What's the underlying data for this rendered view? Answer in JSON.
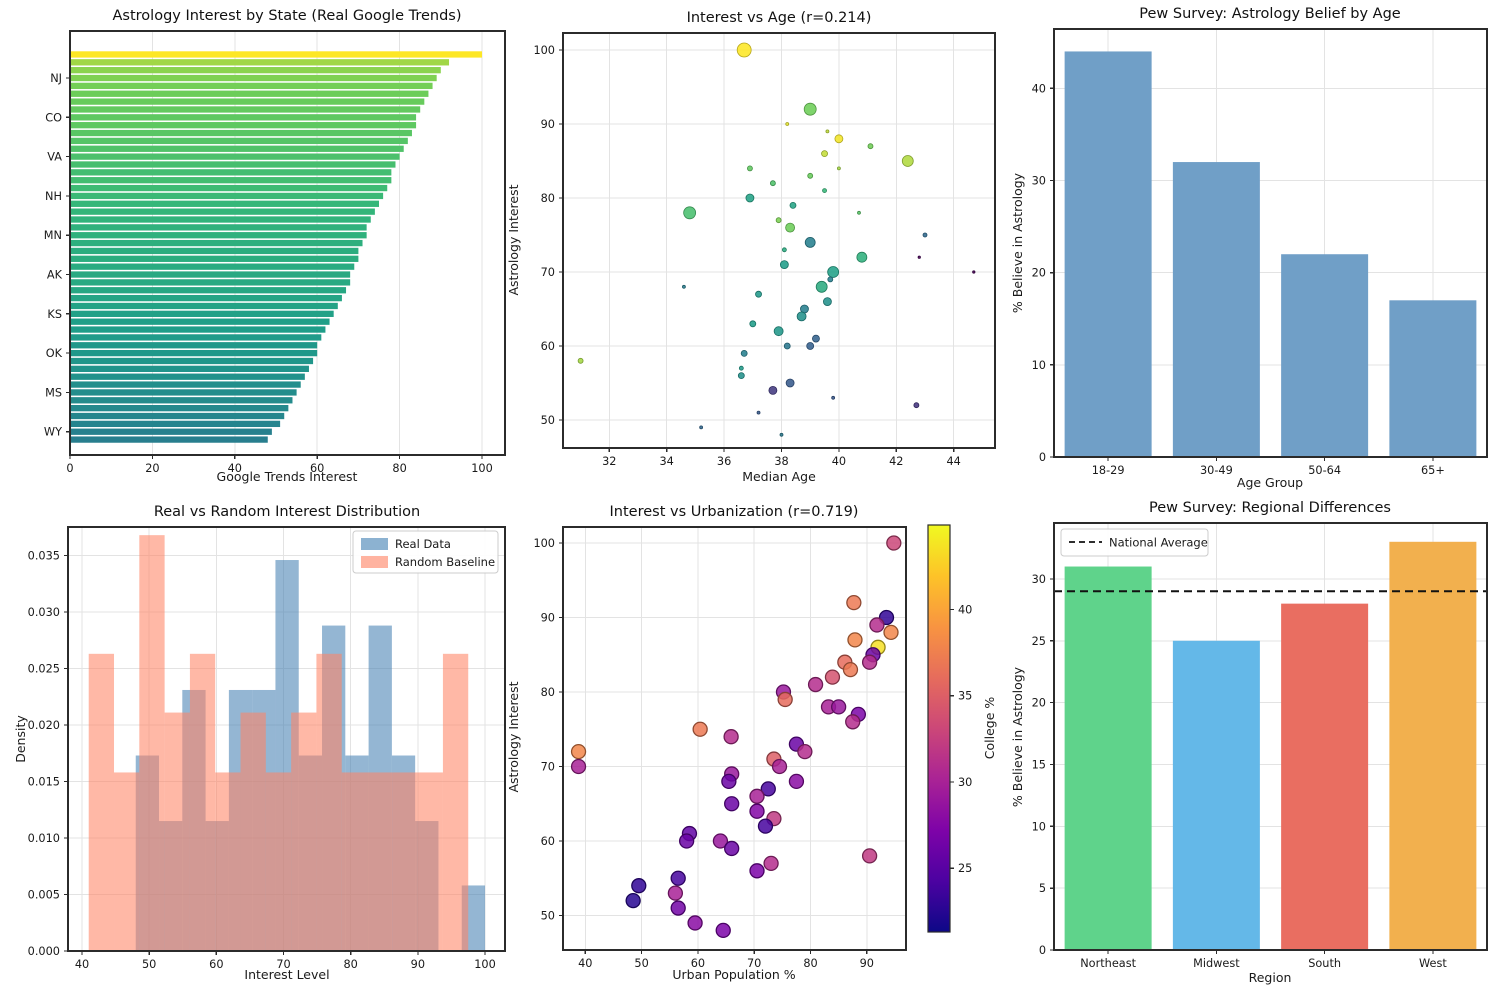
{
  "chart_data": {
    "states": [
      {
        "interest": 100,
        "age": 36.7,
        "urban": 94.8,
        "college": 33,
        "size": 7,
        "label": ""
      },
      {
        "interest": 92,
        "age": 39.0,
        "urban": 87.7,
        "college": 37,
        "size": 6,
        "label": ""
      },
      {
        "interest": 90,
        "age": 38.2,
        "urban": 93.5,
        "college": 23,
        "size": 1.5,
        "label": ""
      },
      {
        "interest": 89,
        "age": 39.6,
        "urban": 91.8,
        "college": 31,
        "size": 1.5,
        "label": "NJ"
      },
      {
        "interest": 88,
        "age": 40.0,
        "urban": 94.3,
        "college": 38,
        "size": 4,
        "label": ""
      },
      {
        "interest": 87,
        "age": 41.1,
        "urban": 87.9,
        "college": 38,
        "size": 2.5,
        "label": ""
      },
      {
        "interest": 86,
        "age": 39.5,
        "urban": 92.0,
        "college": 43.5,
        "size": 3,
        "label": ""
      },
      {
        "interest": 85,
        "age": 42.4,
        "urban": 91.1,
        "college": 26,
        "size": 5.5,
        "label": ""
      },
      {
        "interest": 84,
        "age": 36.9,
        "urban": 86.1,
        "college": 36,
        "size": 2.5,
        "label": "CO"
      },
      {
        "interest": 84,
        "age": 40.0,
        "urban": 90.5,
        "college": 31,
        "size": 1.5,
        "label": ""
      },
      {
        "interest": 83,
        "age": 39.0,
        "urban": 87.1,
        "college": 37,
        "size": 2.5,
        "label": ""
      },
      {
        "interest": 82,
        "age": 37.7,
        "urban": 83.9,
        "college": 34,
        "size": 2.5,
        "label": ""
      },
      {
        "interest": 81,
        "age": 39.5,
        "urban": 80.9,
        "college": 31,
        "size": 2,
        "label": ""
      },
      {
        "interest": 80,
        "age": 36.9,
        "urban": 75.2,
        "college": 29,
        "size": 4,
        "label": "VA"
      },
      {
        "interest": 79,
        "age": 38.4,
        "urban": 75.5,
        "college": 36,
        "size": 3,
        "label": ""
      },
      {
        "interest": 78,
        "age": 34.8,
        "urban": 83.2,
        "college": 30,
        "size": 6,
        "label": ""
      },
      {
        "interest": 78,
        "age": 40.7,
        "urban": 85.0,
        "college": 29,
        "size": 1.5,
        "label": ""
      },
      {
        "interest": 77,
        "age": 37.9,
        "urban": 88.5,
        "college": 27,
        "size": 2.5,
        "label": ""
      },
      {
        "interest": 76,
        "age": 38.3,
        "urban": 87.5,
        "college": 31,
        "size": 4.5,
        "label": "NH"
      },
      {
        "interest": 75,
        "age": 43.0,
        "urban": 60.4,
        "college": 37,
        "size": 2,
        "label": ""
      },
      {
        "interest": 74,
        "age": 39.0,
        "urban": 65.9,
        "college": 31,
        "size": 5,
        "label": ""
      },
      {
        "interest": 73,
        "age": 38.1,
        "urban": 77.5,
        "college": 26,
        "size": 2,
        "label": ""
      },
      {
        "interest": 72,
        "age": 42.8,
        "urban": 38.8,
        "college": 38,
        "size": 1.2,
        "label": ""
      },
      {
        "interest": 72,
        "age": 40.8,
        "urban": 79.0,
        "college": 31,
        "size": 5,
        "label": "MN"
      },
      {
        "interest": 71,
        "age": 38.1,
        "urban": 73.5,
        "college": 35,
        "size": 4,
        "label": ""
      },
      {
        "interest": 70,
        "age": 44.7,
        "urban": 38.8,
        "college": 30,
        "size": 1.2,
        "label": ""
      },
      {
        "interest": 70,
        "age": 39.8,
        "urban": 74.5,
        "college": 30,
        "size": 5.5,
        "label": ""
      },
      {
        "interest": 69,
        "age": 39.7,
        "urban": 66.0,
        "college": 29,
        "size": 2.5,
        "label": ""
      },
      {
        "interest": 68,
        "age": 39.4,
        "urban": 77.5,
        "college": 28,
        "size": 5.5,
        "label": "AK"
      },
      {
        "interest": 68,
        "age": 34.6,
        "urban": 65.5,
        "college": 26,
        "size": 1.5,
        "label": ""
      },
      {
        "interest": 67,
        "age": 37.2,
        "urban": 72.5,
        "college": 24,
        "size": 3,
        "label": ""
      },
      {
        "interest": 66,
        "age": 39.6,
        "urban": 70.5,
        "college": 30,
        "size": 4,
        "label": ""
      },
      {
        "interest": 65,
        "age": 38.8,
        "urban": 66.0,
        "college": 26,
        "size": 4,
        "label": ""
      },
      {
        "interest": 64,
        "age": 38.7,
        "urban": 70.5,
        "college": 27.5,
        "size": 4.5,
        "label": "KS"
      },
      {
        "interest": 63,
        "age": 37.0,
        "urban": 73.5,
        "college": 32,
        "size": 3,
        "label": ""
      },
      {
        "interest": 62,
        "age": 37.9,
        "urban": 72.0,
        "college": 24,
        "size": 4.5,
        "label": ""
      },
      {
        "interest": 61,
        "age": 39.2,
        "urban": 58.5,
        "college": 25.5,
        "size": 3.5,
        "label": ""
      },
      {
        "interest": 60,
        "age": 38.2,
        "urban": 64.0,
        "college": 29,
        "size": 3,
        "label": ""
      },
      {
        "interest": 60,
        "age": 39.0,
        "urban": 58.0,
        "college": 26,
        "size": 3.5,
        "label": "OK"
      },
      {
        "interest": 59,
        "age": 36.7,
        "urban": 66.0,
        "college": 26,
        "size": 3,
        "label": ""
      },
      {
        "interest": 58,
        "age": 31.0,
        "urban": 90.5,
        "college": 32,
        "size": 2.5,
        "label": ""
      },
      {
        "interest": 57,
        "age": 36.6,
        "urban": 73.0,
        "college": 31,
        "size": 2,
        "label": ""
      },
      {
        "interest": 56,
        "age": 36.6,
        "urban": 70.5,
        "college": 27,
        "size": 3,
        "label": ""
      },
      {
        "interest": 55,
        "age": 38.3,
        "urban": 56.5,
        "college": 24,
        "size": 4,
        "label": "MS"
      },
      {
        "interest": 54,
        "age": 37.7,
        "urban": 49.5,
        "college": 23,
        "size": 4,
        "label": ""
      },
      {
        "interest": 53,
        "age": 39.8,
        "urban": 56.0,
        "college": 30,
        "size": 1.5,
        "label": ""
      },
      {
        "interest": 52,
        "age": 42.7,
        "urban": 48.5,
        "college": 22.5,
        "size": 2.5,
        "label": ""
      },
      {
        "interest": 51,
        "age": 37.2,
        "urban": 56.5,
        "college": 26.5,
        "size": 1.5,
        "label": ""
      },
      {
        "interest": 49,
        "age": 35.2,
        "urban": 59.5,
        "college": 28,
        "size": 1.5,
        "label": "WY"
      },
      {
        "interest": 48,
        "age": 38.0,
        "urban": 64.5,
        "college": 27,
        "size": 1.5,
        "label": ""
      }
    ],
    "state_bar": {
      "type": "bar",
      "title": "Astrology Interest by State (Real Google Trends)",
      "xlabel": "Google Trends Interest",
      "x_ticks": [
        0,
        20,
        40,
        60,
        80,
        100
      ],
      "colormap": "viridis",
      "note_visible_y_labels": [
        "NJ",
        "CO",
        "VA",
        "NH",
        "MN",
        "AK",
        "KS",
        "OK",
        "MS",
        "WY"
      ]
    },
    "age_scatter": {
      "type": "scatter",
      "title": "Interest vs Age (r=0.214)",
      "xlabel": "Median Age",
      "ylabel": "Astrology Interest",
      "x_ticks": [
        32,
        34,
        36,
        38,
        40,
        42,
        44
      ],
      "y_ticks": [
        50,
        60,
        70,
        80,
        90,
        100
      ],
      "colormap": "viridis",
      "color_by": "urban",
      "color_range": [
        38.8,
        94.8
      ]
    },
    "pew_age": {
      "type": "bar",
      "title": "Pew Survey: Astrology Belief by Age",
      "xlabel": "Age Group",
      "ylabel": "% Believe in Astrology",
      "categories": [
        "18-29",
        "30-49",
        "50-64",
        "65+"
      ],
      "values": [
        44,
        32,
        22,
        17
      ],
      "y_ticks": [
        0,
        10,
        20,
        30,
        40
      ],
      "bar_color": "#709fc7"
    },
    "distribution": {
      "type": "histogram",
      "title": "Real vs Random Interest Distribution",
      "xlabel": "Interest Level",
      "ylabel": "Density",
      "x_ticks": [
        40,
        50,
        60,
        70,
        80,
        90,
        100
      ],
      "y_ticks": [
        0,
        0.005,
        0.01,
        0.015,
        0.02,
        0.025,
        0.03,
        0.035
      ],
      "series": [
        {
          "name": "Real Data",
          "color": "#4682b4",
          "start": 48,
          "bin_width": 3.4667,
          "heights": [
            0.0173,
            0.0115,
            0.0231,
            0.0115,
            0.0231,
            0.0231,
            0.0346,
            0.0173,
            0.0288,
            0.0173,
            0.0288,
            0.0173,
            0.0115,
            0,
            0.0058
          ]
        },
        {
          "name": "Random Baseline",
          "color": "#ff8465",
          "start": 41,
          "bin_width": 3.7667,
          "heights": [
            0.0263,
            0.0158,
            0.0368,
            0.0211,
            0.0263,
            0.0158,
            0.0211,
            0.0158,
            0.0211,
            0.0263,
            0.0158,
            0.0158,
            0.0158,
            0.0158,
            0.0263
          ]
        }
      ],
      "legend": [
        "Real Data",
        "Random Baseline"
      ]
    },
    "urban_scatter": {
      "type": "scatter",
      "title": "Interest vs Urbanization (r=0.719)",
      "xlabel": "Urban Population %",
      "ylabel": "Astrology Interest",
      "x_ticks": [
        40,
        50,
        60,
        70,
        80,
        90
      ],
      "y_ticks": [
        50,
        60,
        70,
        80,
        90,
        100
      ],
      "colormap": "plasma",
      "color_by": "college",
      "color_range": [
        21.3,
        44.9
      ],
      "colorbar": {
        "label": "College %",
        "ticks": [
          25,
          30,
          35,
          40
        ]
      }
    },
    "pew_region": {
      "type": "bar",
      "title": "Pew Survey: Regional Differences",
      "xlabel": "Region",
      "ylabel": "% Believe in Astrology",
      "categories": [
        "Northeast",
        "Midwest",
        "South",
        "West"
      ],
      "values": [
        31,
        25,
        28,
        33
      ],
      "colors": [
        "#5fd38b",
        "#64b8e8",
        "#e96e61",
        "#f2b04e"
      ],
      "y_ticks": [
        0,
        5,
        10,
        15,
        20,
        25,
        30
      ],
      "national_average": 29,
      "legend_label": "National Average",
      "avg_line_color": "#111111"
    }
  }
}
